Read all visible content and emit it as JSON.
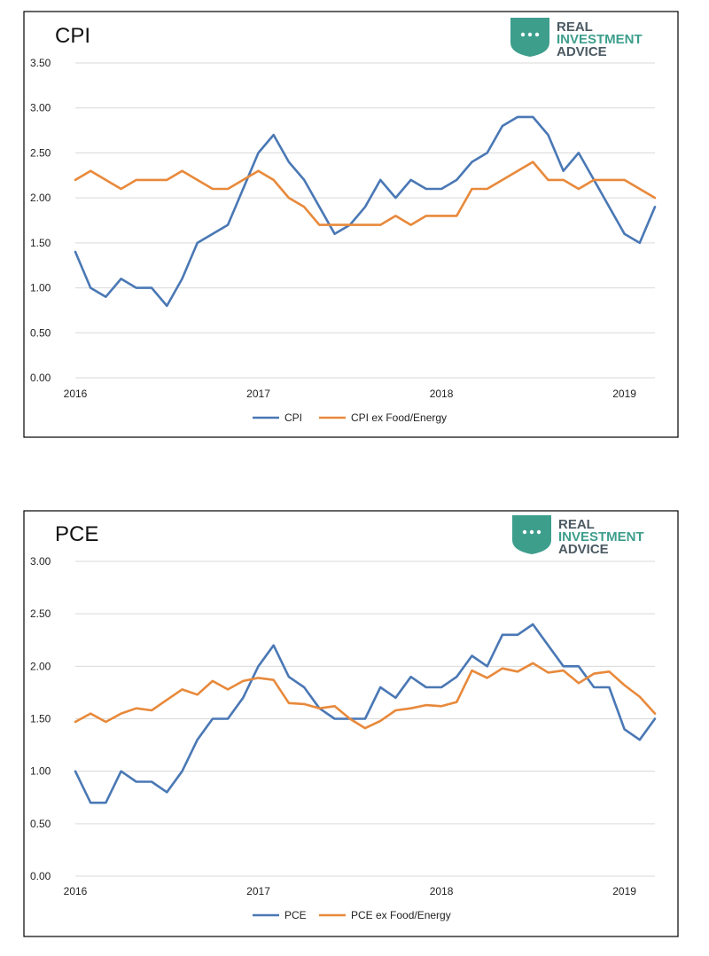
{
  "brand": {
    "line1": "REAL",
    "line2": "INVESTMENT",
    "line3": "ADVICE",
    "shield_color": "#3d9e8c",
    "text_color_dark": "#4b5a63",
    "text_color_accent": "#3d9e8c"
  },
  "colors": {
    "series_primary": "#4a78b5",
    "series_secondary": "#e8893b",
    "axis_text": "#222222",
    "gridline": "#d9d9d9",
    "border": "#000000"
  },
  "chart_data": [
    {
      "type": "line",
      "title": "CPI",
      "xlabel": "",
      "ylabel": "",
      "ylim": [
        0,
        3.5
      ],
      "yticks": [
        "0.00",
        "0.50",
        "1.00",
        "1.50",
        "2.00",
        "2.50",
        "3.00",
        "3.50"
      ],
      "xticks": [
        "2016",
        "2017",
        "2018",
        "2019"
      ],
      "grid": true,
      "legend_position": "bottom",
      "x_start": "2016-01",
      "x_frequency": "monthly",
      "series": [
        {
          "name": "CPI",
          "values": [
            1.4,
            1.0,
            0.9,
            1.1,
            1.0,
            1.0,
            0.8,
            1.1,
            1.5,
            1.6,
            1.7,
            2.1,
            2.5,
            2.7,
            2.4,
            2.2,
            1.9,
            1.6,
            1.7,
            1.9,
            2.2,
            2.0,
            2.2,
            2.1,
            2.1,
            2.2,
            2.4,
            2.5,
            2.8,
            2.9,
            2.9,
            2.7,
            2.3,
            2.5,
            2.2,
            1.9,
            1.6,
            1.5,
            1.9
          ]
        },
        {
          "name": "CPI ex Food/Energy",
          "values": [
            2.2,
            2.3,
            2.2,
            2.1,
            2.2,
            2.2,
            2.2,
            2.3,
            2.2,
            2.1,
            2.1,
            2.2,
            2.3,
            2.2,
            2.0,
            1.9,
            1.7,
            1.7,
            1.7,
            1.7,
            1.7,
            1.8,
            1.7,
            1.8,
            1.8,
            1.8,
            2.1,
            2.1,
            2.2,
            2.3,
            2.4,
            2.2,
            2.2,
            2.1,
            2.2,
            2.2,
            2.2,
            2.1,
            2.0
          ]
        }
      ]
    },
    {
      "type": "line",
      "title": "PCE",
      "xlabel": "",
      "ylabel": "",
      "ylim": [
        0,
        3.0
      ],
      "yticks": [
        "0.00",
        "0.50",
        "1.00",
        "1.50",
        "2.00",
        "2.50",
        "3.00"
      ],
      "xticks": [
        "2016",
        "2017",
        "2018",
        "2019"
      ],
      "grid": true,
      "legend_position": "bottom",
      "x_start": "2016-01",
      "x_frequency": "monthly",
      "series": [
        {
          "name": "PCE",
          "values": [
            1.0,
            0.7,
            0.7,
            1.0,
            0.9,
            0.9,
            0.8,
            1.0,
            1.3,
            1.5,
            1.5,
            1.7,
            2.0,
            2.2,
            1.9,
            1.8,
            1.6,
            1.5,
            1.5,
            1.5,
            1.8,
            1.7,
            1.9,
            1.8,
            1.8,
            1.9,
            2.1,
            2.0,
            2.3,
            2.3,
            2.4,
            2.2,
            2.0,
            2.0,
            1.8,
            1.8,
            1.4,
            1.3,
            1.5
          ]
        },
        {
          "name": "PCE ex Food/Energy",
          "values": [
            1.47,
            1.55,
            1.47,
            1.55,
            1.6,
            1.58,
            1.68,
            1.78,
            1.73,
            1.86,
            1.78,
            1.86,
            1.89,
            1.87,
            1.65,
            1.64,
            1.6,
            1.62,
            1.5,
            1.41,
            1.48,
            1.58,
            1.6,
            1.63,
            1.62,
            1.66,
            1.96,
            1.89,
            1.98,
            1.95,
            2.03,
            1.94,
            1.96,
            1.84,
            1.93,
            1.95,
            1.82,
            1.71,
            1.55
          ]
        }
      ]
    }
  ]
}
